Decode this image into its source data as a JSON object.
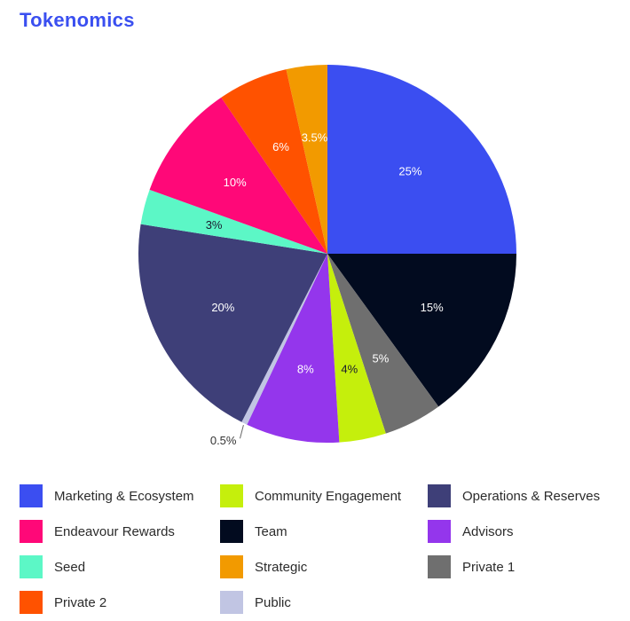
{
  "title": "Tokenomics",
  "chart_data": {
    "type": "pie",
    "title": "Tokenomics",
    "slices": [
      {
        "name": "Marketing & Ecosystem",
        "value": 25,
        "label": "25%",
        "color": "#3b4ef1"
      },
      {
        "name": "Team",
        "value": 15,
        "label": "15%",
        "color": "#020b1f"
      },
      {
        "name": "Private 1",
        "value": 5,
        "label": "5%",
        "color": "#6f6f6f"
      },
      {
        "name": "Community Engagement",
        "value": 4,
        "label": "4%",
        "color": "#c5ef0c"
      },
      {
        "name": "Advisors",
        "value": 8,
        "label": "8%",
        "color": "#9436ec"
      },
      {
        "name": "Public",
        "value": 0.5,
        "label": "0.5%",
        "color": "#c1c5e3"
      },
      {
        "name": "Operations & Reserves",
        "value": 20,
        "label": "20%",
        "color": "#3e3f78"
      },
      {
        "name": "Seed",
        "value": 3,
        "label": "3%",
        "color": "#5cf7c6"
      },
      {
        "name": "Endeavour Rewards",
        "value": 10,
        "label": "10%",
        "color": "#ff0878"
      },
      {
        "name": "Private 2",
        "value": 6,
        "label": "6%",
        "color": "#ff5200"
      },
      {
        "name": "Strategic",
        "value": 3.5,
        "label": "3.5%",
        "color": "#f29a00"
      }
    ]
  },
  "legend": [
    {
      "label": "Marketing & Ecosystem",
      "color": "#3b4ef1"
    },
    {
      "label": "Community Engagement",
      "color": "#c5ef0c"
    },
    {
      "label": "Operations & Reserves",
      "color": "#3e3f78"
    },
    {
      "label": "Endeavour Rewards",
      "color": "#ff0878"
    },
    {
      "label": "Team",
      "color": "#020b1f"
    },
    {
      "label": "Advisors",
      "color": "#9436ec"
    },
    {
      "label": "Seed",
      "color": "#5cf7c6"
    },
    {
      "label": "Strategic",
      "color": "#f29a00"
    },
    {
      "label": "Private 1",
      "color": "#6f6f6f"
    },
    {
      "label": "Private 2",
      "color": "#ff5200"
    },
    {
      "label": "Public",
      "color": "#c1c5e3"
    }
  ]
}
